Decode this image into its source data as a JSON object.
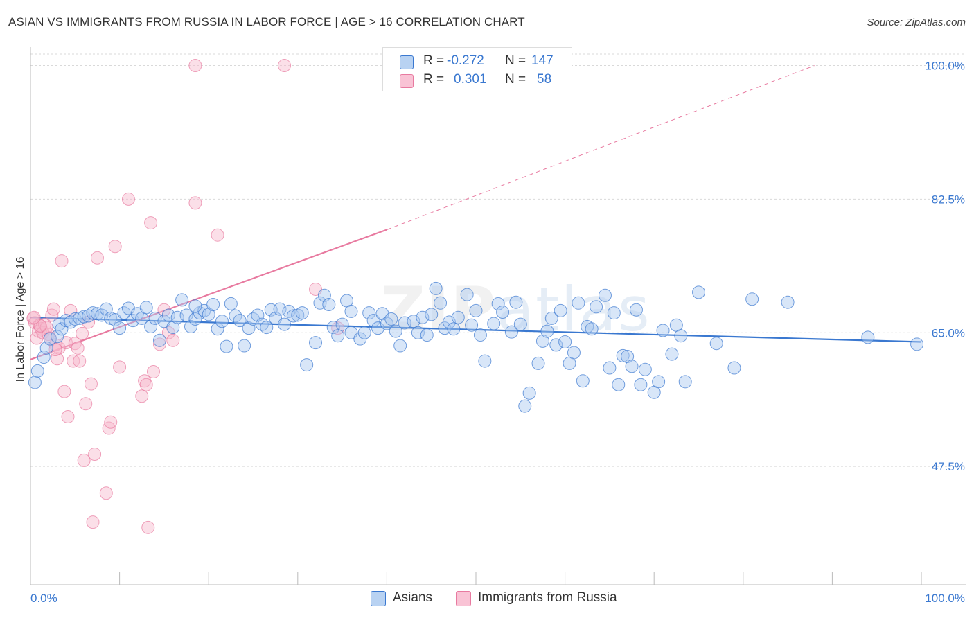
{
  "title": "ASIAN VS IMMIGRANTS FROM RUSSIA IN LABOR FORCE | AGE > 16 CORRELATION CHART",
  "source": "Source: ZipAtlas.com",
  "watermark": {
    "zip": "ZIP",
    "atlas": "atlas"
  },
  "colors": {
    "asians": "#3a78d0",
    "russia": "#e87aa0",
    "asians_fill": "#a9c8f0",
    "russia_fill": "#f7b8cc",
    "tick": "#3a78d0"
  },
  "stats": {
    "asians": {
      "r_label": "R =",
      "r_value": "-0.272",
      "n_label": "N =",
      "n_value": "147"
    },
    "russia": {
      "r_label": "R =",
      "r_value": "0.301",
      "n_label": "N =",
      "n_value": "58"
    }
  },
  "legend": {
    "asians": "Asians",
    "russia": "Immigrants from Russia"
  },
  "chart_data": {
    "type": "scatter",
    "title": "ASIAN VS IMMIGRANTS FROM RUSSIA IN LABOR FORCE | AGE > 16 CORRELATION CHART",
    "xlabel": "",
    "ylabel": "In Labor Force | Age > 16",
    "xlim": [
      0,
      100
    ],
    "ylim": [
      32,
      101.5
    ],
    "x_tick_labels": [
      "0.0%",
      "100.0%"
    ],
    "y_ticks": [
      47.5,
      65.0,
      82.5,
      100.0
    ],
    "y_tick_labels": [
      "47.5%",
      "65.0%",
      "82.5%",
      "100.0%"
    ],
    "grid": true,
    "legend_position": "bottom",
    "series": [
      {
        "name": "Asians",
        "r": -0.272,
        "n": 147,
        "trend": {
          "x": [
            0,
            100
          ],
          "y": [
            67.0,
            63.8
          ]
        },
        "points": [
          [
            0.5,
            58.5
          ],
          [
            0.8,
            60.0
          ],
          [
            1.5,
            61.8
          ],
          [
            1.8,
            63.0
          ],
          [
            2.2,
            64.2
          ],
          [
            3.0,
            64.5
          ],
          [
            3.2,
            66.1
          ],
          [
            3.5,
            65.5
          ],
          [
            4.0,
            66.6
          ],
          [
            4.5,
            66.4
          ],
          [
            5.0,
            66.8
          ],
          [
            5.5,
            66.9
          ],
          [
            6.0,
            67.1
          ],
          [
            6.5,
            67.2
          ],
          [
            7.0,
            67.6
          ],
          [
            7.5,
            67.5
          ],
          [
            8.0,
            67.3
          ],
          [
            8.5,
            68.1
          ],
          [
            9.0,
            66.9
          ],
          [
            9.5,
            66.7
          ],
          [
            10.0,
            65.6
          ],
          [
            10.5,
            67.6
          ],
          [
            11.0,
            68.2
          ],
          [
            11.5,
            66.6
          ],
          [
            12.0,
            67.5
          ],
          [
            12.5,
            66.9
          ],
          [
            13.0,
            68.3
          ],
          [
            13.5,
            65.8
          ],
          [
            14.0,
            66.9
          ],
          [
            14.5,
            64.0
          ],
          [
            15.0,
            66.5
          ],
          [
            15.5,
            67.3
          ],
          [
            16.0,
            65.7
          ],
          [
            16.5,
            67.0
          ],
          [
            17.0,
            69.3
          ],
          [
            17.5,
            67.3
          ],
          [
            18.0,
            65.8
          ],
          [
            18.5,
            66.8
          ],
          [
            19.0,
            67.6
          ],
          [
            19.5,
            67.9
          ],
          [
            20.0,
            67.4
          ],
          [
            20.5,
            68.7
          ],
          [
            21.0,
            65.5
          ],
          [
            21.5,
            66.5
          ],
          [
            22.0,
            63.2
          ],
          [
            22.5,
            68.8
          ],
          [
            23.0,
            67.2
          ],
          [
            23.5,
            66.6
          ],
          [
            24.0,
            63.3
          ],
          [
            24.5,
            65.6
          ],
          [
            25.0,
            66.8
          ],
          [
            25.5,
            67.3
          ],
          [
            26.0,
            66.1
          ],
          [
            26.5,
            65.7
          ],
          [
            27.0,
            68.0
          ],
          [
            27.5,
            66.9
          ],
          [
            28.0,
            68.1
          ],
          [
            28.5,
            66.1
          ],
          [
            29.0,
            67.8
          ],
          [
            29.5,
            67.2
          ],
          [
            30.0,
            67.3
          ],
          [
            30.5,
            67.6
          ],
          [
            31.0,
            60.8
          ],
          [
            32.0,
            63.7
          ],
          [
            32.5,
            68.9
          ],
          [
            33.0,
            69.9
          ],
          [
            33.5,
            68.7
          ],
          [
            34.0,
            65.7
          ],
          [
            34.5,
            64.6
          ],
          [
            35.0,
            66.1
          ],
          [
            35.5,
            69.2
          ],
          [
            36.0,
            65.0
          ],
          [
            37.0,
            64.2
          ],
          [
            37.5,
            65.0
          ],
          [
            38.0,
            67.6
          ],
          [
            38.5,
            66.6
          ],
          [
            39.0,
            65.6
          ],
          [
            39.5,
            67.5
          ],
          [
            40.0,
            66.2
          ],
          [
            40.5,
            66.8
          ],
          [
            41.0,
            65.2
          ],
          [
            41.5,
            63.3
          ],
          [
            42.0,
            66.3
          ],
          [
            43.0,
            66.5
          ],
          [
            43.5,
            65.0
          ],
          [
            44.0,
            67.0
          ],
          [
            44.5,
            64.7
          ],
          [
            45.0,
            67.4
          ],
          [
            45.5,
            70.8
          ],
          [
            46.0,
            68.9
          ],
          [
            46.5,
            65.6
          ],
          [
            47.0,
            66.4
          ],
          [
            47.5,
            65.5
          ],
          [
            48.0,
            67.0
          ],
          [
            49.0,
            70.0
          ],
          [
            49.5,
            66.0
          ],
          [
            50.0,
            67.9
          ],
          [
            50.5,
            64.7
          ],
          [
            51.0,
            61.3
          ],
          [
            52.0,
            66.2
          ],
          [
            52.5,
            68.8
          ],
          [
            53.0,
            67.7
          ],
          [
            54.0,
            65.1
          ],
          [
            54.5,
            69.0
          ],
          [
            55.0,
            66.1
          ],
          [
            55.5,
            55.4
          ],
          [
            56.0,
            57.1
          ],
          [
            57.0,
            61.0
          ],
          [
            57.5,
            63.9
          ],
          [
            58.0,
            65.2
          ],
          [
            58.5,
            66.9
          ],
          [
            59.0,
            63.4
          ],
          [
            59.5,
            67.9
          ],
          [
            60.0,
            63.8
          ],
          [
            60.5,
            61.0
          ],
          [
            61.0,
            62.4
          ],
          [
            61.5,
            68.9
          ],
          [
            62.0,
            58.7
          ],
          [
            62.5,
            65.8
          ],
          [
            63.0,
            65.5
          ],
          [
            63.5,
            68.4
          ],
          [
            64.5,
            69.9
          ],
          [
            65.0,
            60.4
          ],
          [
            65.5,
            67.6
          ],
          [
            66.0,
            58.2
          ],
          [
            66.5,
            62.0
          ],
          [
            67.0,
            61.9
          ],
          [
            67.5,
            60.6
          ],
          [
            68.0,
            68.0
          ],
          [
            68.5,
            58.2
          ],
          [
            69.0,
            60.2
          ],
          [
            70.0,
            57.2
          ],
          [
            70.5,
            58.6
          ],
          [
            71.0,
            65.3
          ],
          [
            72.0,
            62.2
          ],
          [
            72.5,
            66.0
          ],
          [
            73.0,
            64.6
          ],
          [
            73.5,
            58.6
          ],
          [
            75.0,
            70.3
          ],
          [
            77.0,
            63.6
          ],
          [
            79.0,
            60.4
          ],
          [
            81.0,
            69.4
          ],
          [
            85.0,
            69.0
          ],
          [
            94.0,
            64.4
          ],
          [
            99.5,
            63.5
          ],
          [
            18.5,
            68.5
          ],
          [
            36.0,
            67.8
          ]
        ]
      },
      {
        "name": "Immigrants from Russia",
        "r": 0.301,
        "n": 58,
        "trend": {
          "x": [
            0,
            40
          ],
          "y": [
            61.5,
            78.5
          ],
          "extended": {
            "x": [
              40,
              88
            ],
            "y": [
              78.5,
              100.0
            ]
          }
        },
        "points": [
          [
            0.3,
            66.9
          ],
          [
            0.5,
            66.3
          ],
          [
            0.7,
            64.3
          ],
          [
            0.9,
            65.2
          ],
          [
            1.0,
            66.0
          ],
          [
            1.2,
            65.5
          ],
          [
            1.4,
            65.0
          ],
          [
            1.6,
            66.1
          ],
          [
            1.8,
            65.7
          ],
          [
            2.0,
            64.8
          ],
          [
            2.2,
            64.3
          ],
          [
            2.4,
            67.3
          ],
          [
            2.6,
            68.1
          ],
          [
            2.8,
            63.4
          ],
          [
            3.0,
            61.6
          ],
          [
            3.2,
            63.0
          ],
          [
            3.5,
            74.4
          ],
          [
            3.8,
            57.3
          ],
          [
            4.0,
            63.7
          ],
          [
            4.2,
            54.0
          ],
          [
            4.5,
            67.9
          ],
          [
            4.8,
            61.3
          ],
          [
            5.0,
            63.6
          ],
          [
            5.3,
            63.0
          ],
          [
            5.5,
            61.3
          ],
          [
            5.8,
            64.9
          ],
          [
            6.0,
            48.3
          ],
          [
            6.2,
            55.7
          ],
          [
            6.5,
            66.4
          ],
          [
            6.8,
            58.3
          ],
          [
            7.0,
            40.2
          ],
          [
            7.2,
            49.1
          ],
          [
            7.5,
            74.8
          ],
          [
            8.5,
            44.0
          ],
          [
            8.8,
            52.5
          ],
          [
            9.0,
            53.3
          ],
          [
            9.5,
            76.3
          ],
          [
            10.0,
            60.5
          ],
          [
            11.0,
            82.5
          ],
          [
            12.5,
            56.7
          ],
          [
            12.8,
            58.7
          ],
          [
            13.0,
            58.2
          ],
          [
            13.2,
            39.5
          ],
          [
            13.5,
            79.4
          ],
          [
            13.8,
            59.9
          ],
          [
            14.5,
            63.5
          ],
          [
            15.0,
            68.0
          ],
          [
            15.5,
            65.0
          ],
          [
            16.0,
            64.0
          ],
          [
            18.5,
            100.0
          ],
          [
            18.5,
            82.0
          ],
          [
            21.0,
            77.8
          ],
          [
            28.5,
            100.0
          ],
          [
            32.0,
            70.7
          ],
          [
            34.5,
            65.6
          ],
          [
            2.8,
            62.8
          ],
          [
            1.1,
            65.9
          ],
          [
            0.4,
            67.0
          ]
        ]
      }
    ]
  }
}
